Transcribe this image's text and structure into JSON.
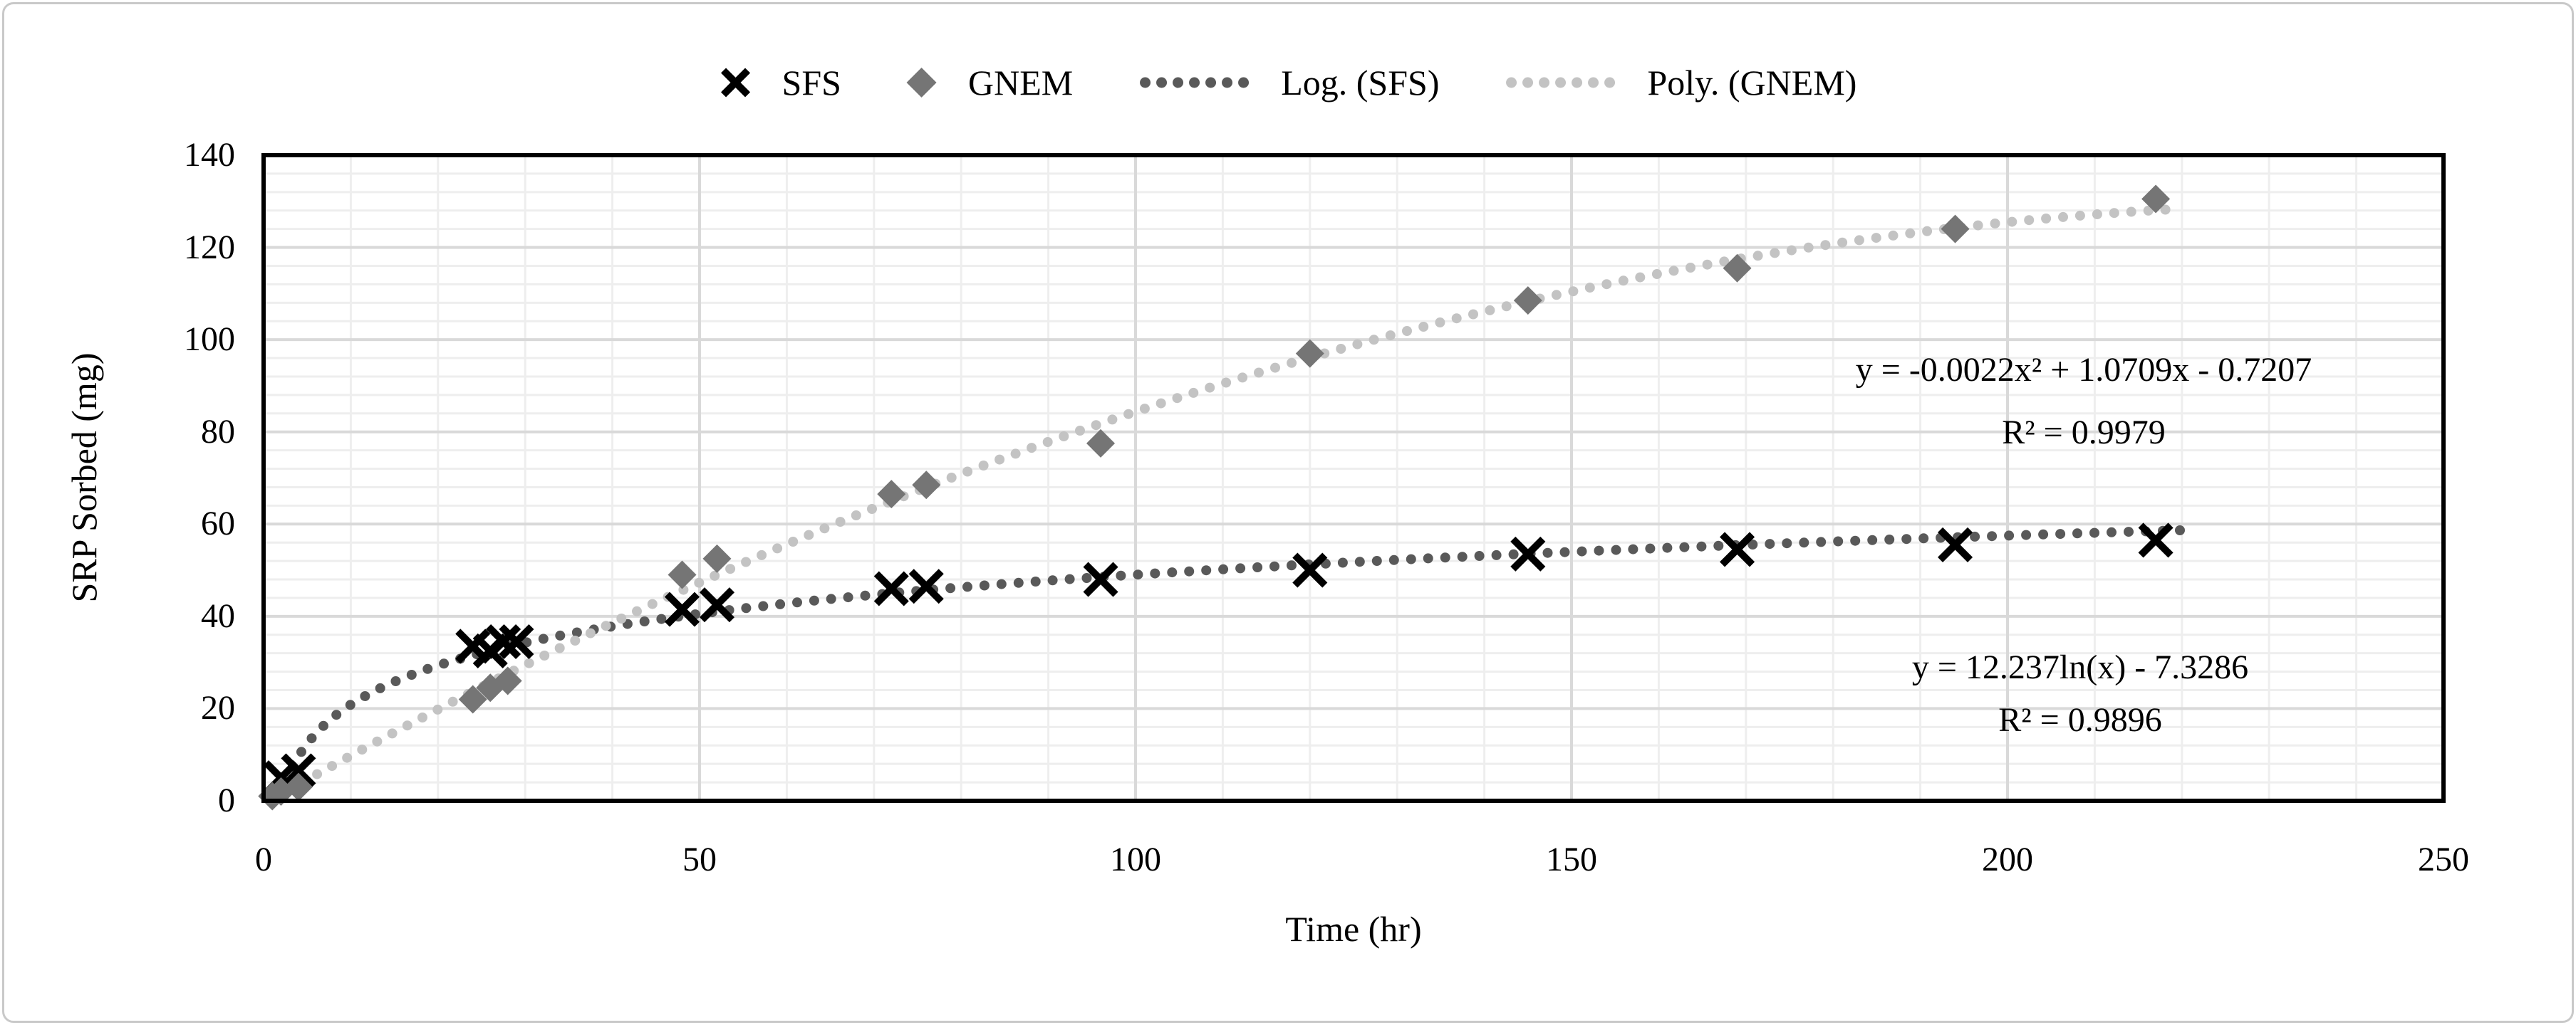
{
  "figure": {
    "background": "#ffffff",
    "border_color": "#c9c9c9"
  },
  "chart_data": {
    "type": "scatter",
    "title": "",
    "xlabel": "Time (hr)",
    "ylabel": "SRP Sorbed (mg)",
    "xlim": [
      0,
      250
    ],
    "ylim": [
      0,
      140
    ],
    "x_ticks": [
      0,
      50,
      100,
      150,
      200,
      250
    ],
    "y_ticks": [
      0,
      20,
      40,
      60,
      80,
      100,
      120,
      140
    ],
    "x_major_step": 50,
    "x_minor_step": 10,
    "y_major_step": 20,
    "y_minor_step": 4,
    "grid": {
      "minor_color": "#eeeeee",
      "major_color": "#d9d9d9",
      "frame_color": "#000000",
      "grid_on": true
    },
    "legend_position": "top-center",
    "series": [
      {
        "name": "SFS",
        "marker": "x",
        "color": "#000000",
        "points": [
          [
            2,
            5
          ],
          [
            4,
            6.5
          ],
          [
            24,
            33.5
          ],
          [
            26,
            32.5
          ],
          [
            27.5,
            34.5
          ],
          [
            29,
            34.5
          ],
          [
            48,
            41.5
          ],
          [
            52,
            42.5
          ],
          [
            72,
            46
          ],
          [
            76,
            46.5
          ],
          [
            96,
            48
          ],
          [
            120,
            50
          ],
          [
            145,
            53.5
          ],
          [
            169,
            54.5
          ],
          [
            194,
            55.5
          ],
          [
            217,
            56.5
          ]
        ]
      },
      {
        "name": "GNEM",
        "marker": "diamond",
        "color": "#757575",
        "points": [
          [
            1,
            1
          ],
          [
            2,
            2
          ],
          [
            4,
            3
          ],
          [
            24,
            22
          ],
          [
            26,
            24.5
          ],
          [
            28,
            26
          ],
          [
            48,
            49
          ],
          [
            52,
            52.5
          ],
          [
            72,
            66.5
          ],
          [
            76,
            68.5
          ],
          [
            96,
            77.5
          ],
          [
            120,
            97
          ],
          [
            145,
            108.5
          ],
          [
            169,
            115.5
          ],
          [
            194,
            124
          ],
          [
            217,
            130.5
          ]
        ]
      }
    ],
    "trendlines": [
      {
        "name": "Log. (SFS)",
        "type": "log",
        "color": "#595959",
        "a": 12.237,
        "b": -7.3286,
        "x_start": 1.9,
        "x_end": 220,
        "equation": "y = 12.237ln(x) - 7.3286",
        "r2": "R² = 0.9896"
      },
      {
        "name": "Poly. (GNEM)",
        "type": "poly2",
        "color": "#c3c3c3",
        "a": -0.0022,
        "b": 1.0709,
        "c": -0.7207,
        "x_start": 1,
        "x_end": 220,
        "equation": "y = -0.0022x² + 1.0709x - 0.7207",
        "r2": "R² = 0.9979"
      }
    ],
    "legend": {
      "items": [
        {
          "label": "SFS",
          "marker": "x",
          "color": "#000000"
        },
        {
          "label": "GNEM",
          "marker": "diamond",
          "color": "#757575"
        },
        {
          "label": "Log. (SFS)",
          "marker": "dots",
          "color": "#595959"
        },
        {
          "label": "Poly. (GNEM)",
          "marker": "dots",
          "color": "#c3c3c3"
        }
      ]
    }
  }
}
